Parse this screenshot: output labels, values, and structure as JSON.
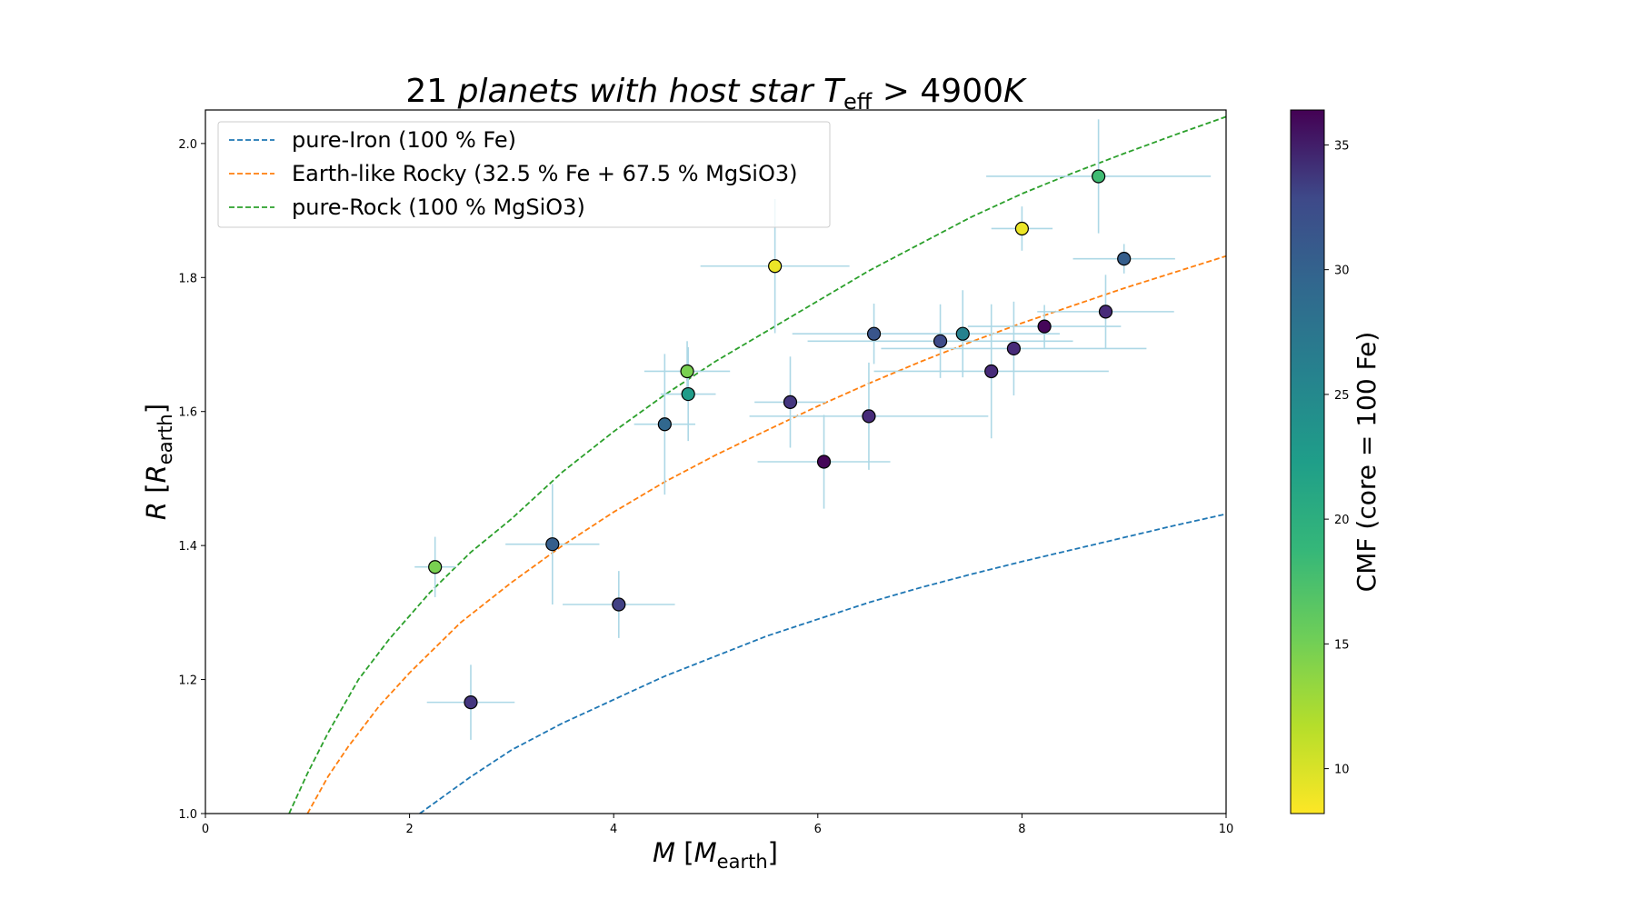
{
  "chart_data": {
    "type": "scatter",
    "title_prefix": "21",
    "title_italic": "planets with host star",
    "title_T": "T",
    "title_T_sub": "eff",
    "title_op": ">",
    "title_value": "4900",
    "title_unit": "K",
    "xlabel_sym": "M",
    "xlabel_unit": "M",
    "xlabel_sub": "earth",
    "ylabel_sym": "R",
    "ylabel_unit": "R",
    "ylabel_sub": "earth",
    "xlim": [
      0,
      10
    ],
    "ylim": [
      1.0,
      2.05
    ],
    "xticks": [
      0,
      2,
      4,
      6,
      8,
      10
    ],
    "xtick_labels": [
      "0",
      "2",
      "4",
      "6",
      "8",
      "10"
    ],
    "yticks": [
      1.0,
      1.2,
      1.4,
      1.6,
      1.8,
      2.0
    ],
    "ytick_labels": [
      "1.0",
      "1.2",
      "1.4",
      "1.6",
      "1.8",
      "2.0"
    ],
    "legend_position": "upper-left",
    "curves": [
      {
        "name": "pure-Iron (100 % Fe)",
        "color": "#1f77b4",
        "x": [
          2.1,
          2.6,
          3.0,
          3.5,
          4.0,
          4.5,
          5.0,
          5.5,
          6.0,
          6.5,
          7.0,
          7.5,
          8.0,
          8.5,
          9.0,
          9.5,
          10.0
        ],
        "y": [
          1.0,
          1.055,
          1.095,
          1.135,
          1.17,
          1.205,
          1.235,
          1.265,
          1.29,
          1.315,
          1.337,
          1.357,
          1.376,
          1.394,
          1.412,
          1.43,
          1.447
        ]
      },
      {
        "name": "Earth-like Rocky (32.5 % Fe + 67.5 % MgSiO3)",
        "color": "#ff7f0e",
        "x": [
          1.0,
          1.2,
          1.4,
          1.7,
          2.0,
          2.5,
          3.0,
          3.5,
          4.0,
          4.5,
          5.0,
          5.5,
          6.0,
          6.5,
          7.0,
          7.5,
          8.0,
          8.5,
          9.0,
          9.5,
          10.0
        ],
        "y": [
          1.0,
          1.055,
          1.1,
          1.16,
          1.21,
          1.285,
          1.345,
          1.4,
          1.45,
          1.495,
          1.535,
          1.572,
          1.608,
          1.642,
          1.674,
          1.704,
          1.732,
          1.758,
          1.784,
          1.808,
          1.832
        ]
      },
      {
        "name": "pure-Rock (100 % MgSiO3)",
        "color": "#2ca02c",
        "x": [
          0.82,
          1.0,
          1.2,
          1.5,
          1.8,
          2.2,
          2.6,
          3.0,
          3.5,
          4.0,
          4.5,
          5.0,
          5.5,
          6.0,
          6.5,
          7.0,
          7.5,
          8.0,
          8.5,
          9.0,
          9.5,
          10.0
        ],
        "y": [
          1.0,
          1.06,
          1.12,
          1.2,
          1.26,
          1.33,
          1.39,
          1.44,
          1.51,
          1.57,
          1.625,
          1.675,
          1.72,
          1.765,
          1.81,
          1.85,
          1.89,
          1.925,
          1.956,
          1.985,
          2.013,
          2.04
        ]
      }
    ],
    "points": [
      {
        "x": 2.25,
        "y": 1.368,
        "xerr": 0.2,
        "yerr": 0.045,
        "cmf": 14
      },
      {
        "x": 2.6,
        "y": 1.166,
        "xerr": 0.43,
        "yerr": 0.056,
        "cmf": 32
      },
      {
        "x": 3.4,
        "y": 1.402,
        "xerr": 0.46,
        "yerr": 0.09,
        "cmf": 28
      },
      {
        "x": 4.05,
        "y": 1.312,
        "xerr": 0.55,
        "yerr": 0.05,
        "cmf": 31
      },
      {
        "x": 4.5,
        "y": 1.581,
        "xerr": 0.3,
        "yerr": 0.105,
        "cmf": 27
      },
      {
        "x": 4.72,
        "y": 1.66,
        "xerr": 0.42,
        "yerr": 0.045,
        "cmf": 14
      },
      {
        "x": 4.73,
        "y": 1.626,
        "xerr": 0.27,
        "yerr": 0.07,
        "cmf": 21
      },
      {
        "x": 5.58,
        "y": 1.817,
        "xerr": 0.73,
        "yerr": 0.1,
        "cmf": 9
      },
      {
        "x": 5.73,
        "y": 1.614,
        "xerr": 0.35,
        "yerr": 0.068,
        "cmf": 32
      },
      {
        "x": 6.06,
        "y": 1.525,
        "xerr": 0.65,
        "yerr": 0.07,
        "cmf": 36
      },
      {
        "x": 6.5,
        "y": 1.593,
        "xerr": 1.17,
        "yerr": 0.08,
        "cmf": 33
      },
      {
        "x": 6.55,
        "y": 1.716,
        "xerr": 0.8,
        "yerr": 0.045,
        "cmf": 29
      },
      {
        "x": 7.2,
        "y": 1.705,
        "xerr": 1.3,
        "yerr": 0.055,
        "cmf": 30
      },
      {
        "x": 7.42,
        "y": 1.716,
        "xerr": 0.95,
        "yerr": 0.065,
        "cmf": 24
      },
      {
        "x": 7.7,
        "y": 1.66,
        "xerr": 1.15,
        "yerr": 0.1,
        "cmf": 33
      },
      {
        "x": 7.92,
        "y": 1.694,
        "xerr": 1.3,
        "yerr": 0.07,
        "cmf": 33
      },
      {
        "x": 8.0,
        "y": 1.873,
        "xerr": 0.3,
        "yerr": 0.033,
        "cmf": 9
      },
      {
        "x": 8.22,
        "y": 1.727,
        "xerr": 0.75,
        "yerr": 0.032,
        "cmf": 36
      },
      {
        "x": 8.75,
        "y": 1.951,
        "xerr": 1.1,
        "yerr": 0.085,
        "cmf": 17
      },
      {
        "x": 8.82,
        "y": 1.749,
        "xerr": 0.67,
        "yerr": 0.055,
        "cmf": 33
      },
      {
        "x": 9.0,
        "y": 1.828,
        "xerr": 0.5,
        "yerr": 0.022,
        "cmf": 28
      }
    ],
    "errorbar_color": "#add8e6",
    "colorbar": {
      "label": "CMF (core = 100 Fe)",
      "vmin": 8.2,
      "vmax": 36.4,
      "ticks": [
        10,
        15,
        20,
        25,
        30,
        35
      ],
      "tick_labels": [
        "10",
        "15",
        "20",
        "25",
        "30",
        "35"
      ],
      "colormap": "viridis_r"
    }
  }
}
